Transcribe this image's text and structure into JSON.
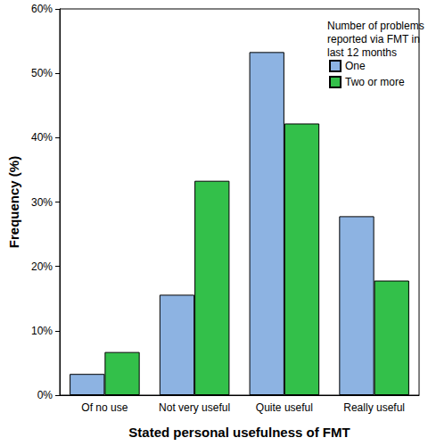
{
  "chart_data": {
    "type": "bar",
    "x_label": "Stated personal usefulness of FMT",
    "y_label": "Frequency (%)",
    "legend_title": "Number of problems\nreported via FMT in\nlast 12 months",
    "categories": [
      "Of no use",
      "Not very useful",
      "Quite useful",
      "Really useful"
    ],
    "series": [
      {
        "name": "One",
        "color": "#8db3e2",
        "values": [
          3.3,
          15.6,
          53.3,
          27.8
        ]
      },
      {
        "name": "Two or more",
        "color": "#33c04a",
        "values": [
          6.7,
          33.3,
          42.2,
          17.8
        ]
      }
    ],
    "ylim": [
      0,
      60
    ],
    "yticks": [
      {
        "value": 0,
        "label": "0%"
      },
      {
        "value": 10,
        "label": "10%"
      },
      {
        "value": 20,
        "label": "20%"
      },
      {
        "value": 30,
        "label": "30%"
      },
      {
        "value": 40,
        "label": "40%"
      },
      {
        "value": 50,
        "label": "50%"
      },
      {
        "value": 60,
        "label": "60%"
      }
    ],
    "grid": false,
    "legend": "upper right"
  }
}
